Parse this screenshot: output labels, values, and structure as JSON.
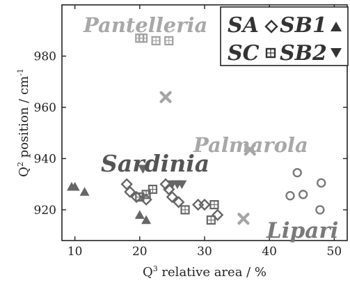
{
  "chart_data": {
    "type": "scatter",
    "xlabel": "Q",
    "xlabel_sup": "3",
    "xlabel_rest": " relative area / %",
    "ylabel": "Q",
    "ylabel_sup": "2",
    "ylabel_rest": " position / cm",
    "ylabel_unit_sup": "-1",
    "xlim": [
      8,
      52
    ],
    "ylim": [
      908,
      1000
    ],
    "xticks": [
      "10",
      "20",
      "30",
      "40",
      "50"
    ],
    "yticks": [
      "920",
      "940",
      "960",
      "980"
    ],
    "grid": false,
    "legend": {
      "placement": "top-right",
      "entries": [
        {
          "label": "SA",
          "marker": "diamond"
        },
        {
          "label": "SB1",
          "marker": "triangle-up"
        },
        {
          "label": "SC",
          "marker": "square"
        },
        {
          "label": "SB2",
          "marker": "triangle-down"
        }
      ]
    },
    "region_labels": [
      {
        "text": "Pantelleria",
        "color": "#a8a8a8"
      },
      {
        "text": "Palmarola",
        "color": "#a8a8a8"
      },
      {
        "text": "Sardinia",
        "color": "#555555"
      },
      {
        "text": "Lipari",
        "color": "#7a7a7a"
      }
    ],
    "colors": {
      "sardinia": "#666666",
      "pantelleria": "#a0a0a0",
      "palmarola": "#a5a5a5",
      "lipari": "#7a7a7a"
    },
    "series": [
      {
        "marker": "diamond",
        "color": "#666666",
        "points": [
          {
            "x": 18,
            "y": 930
          },
          {
            "x": 18.5,
            "y": 927
          },
          {
            "x": 19.5,
            "y": 925
          },
          {
            "x": 21,
            "y": 924
          },
          {
            "x": 24,
            "y": 930
          },
          {
            "x": 24.5,
            "y": 928
          },
          {
            "x": 25,
            "y": 925
          },
          {
            "x": 26,
            "y": 923
          },
          {
            "x": 29,
            "y": 922
          },
          {
            "x": 30,
            "y": 922
          },
          {
            "x": 32,
            "y": 918
          }
        ]
      },
      {
        "marker": "triangle-up",
        "color": "#666666",
        "points": [
          {
            "x": 9.5,
            "y": 929
          },
          {
            "x": 10,
            "y": 929
          },
          {
            "x": 11.5,
            "y": 927
          },
          {
            "x": 20,
            "y": 918
          },
          {
            "x": 21,
            "y": 916
          }
        ]
      },
      {
        "marker": "square",
        "color": "#666666",
        "points": [
          {
            "x": 20,
            "y": 925
          },
          {
            "x": 21,
            "y": 926
          },
          {
            "x": 22,
            "y": 928
          },
          {
            "x": 27,
            "y": 920
          },
          {
            "x": 31,
            "y": 916
          },
          {
            "x": 31.5,
            "y": 922
          }
        ]
      },
      {
        "marker": "triangle-down",
        "color": "#666666",
        "points": [
          {
            "x": 20.5,
            "y": 936
          },
          {
            "x": 25,
            "y": 930
          },
          {
            "x": 25.8,
            "y": 930
          },
          {
            "x": 26.5,
            "y": 930
          }
        ]
      },
      {
        "marker": "square",
        "color": "#a0a0a0",
        "points": [
          {
            "x": 20,
            "y": 987
          },
          {
            "x": 20.5,
            "y": 987
          },
          {
            "x": 22.5,
            "y": 986
          },
          {
            "x": 24.5,
            "y": 986
          }
        ]
      },
      {
        "marker": "x",
        "color": "#a5a5a5",
        "points": [
          {
            "x": 24,
            "y": 964
          },
          {
            "x": 37,
            "y": 943.5
          },
          {
            "x": 36,
            "y": 916.5
          }
        ]
      },
      {
        "marker": "circle",
        "color": "#7a7a7a",
        "points": [
          {
            "x": 44.3,
            "y": 934.5
          },
          {
            "x": 48,
            "y": 930.5
          },
          {
            "x": 43.2,
            "y": 925.5
          },
          {
            "x": 45.2,
            "y": 926
          },
          {
            "x": 47.8,
            "y": 920
          }
        ]
      }
    ]
  }
}
